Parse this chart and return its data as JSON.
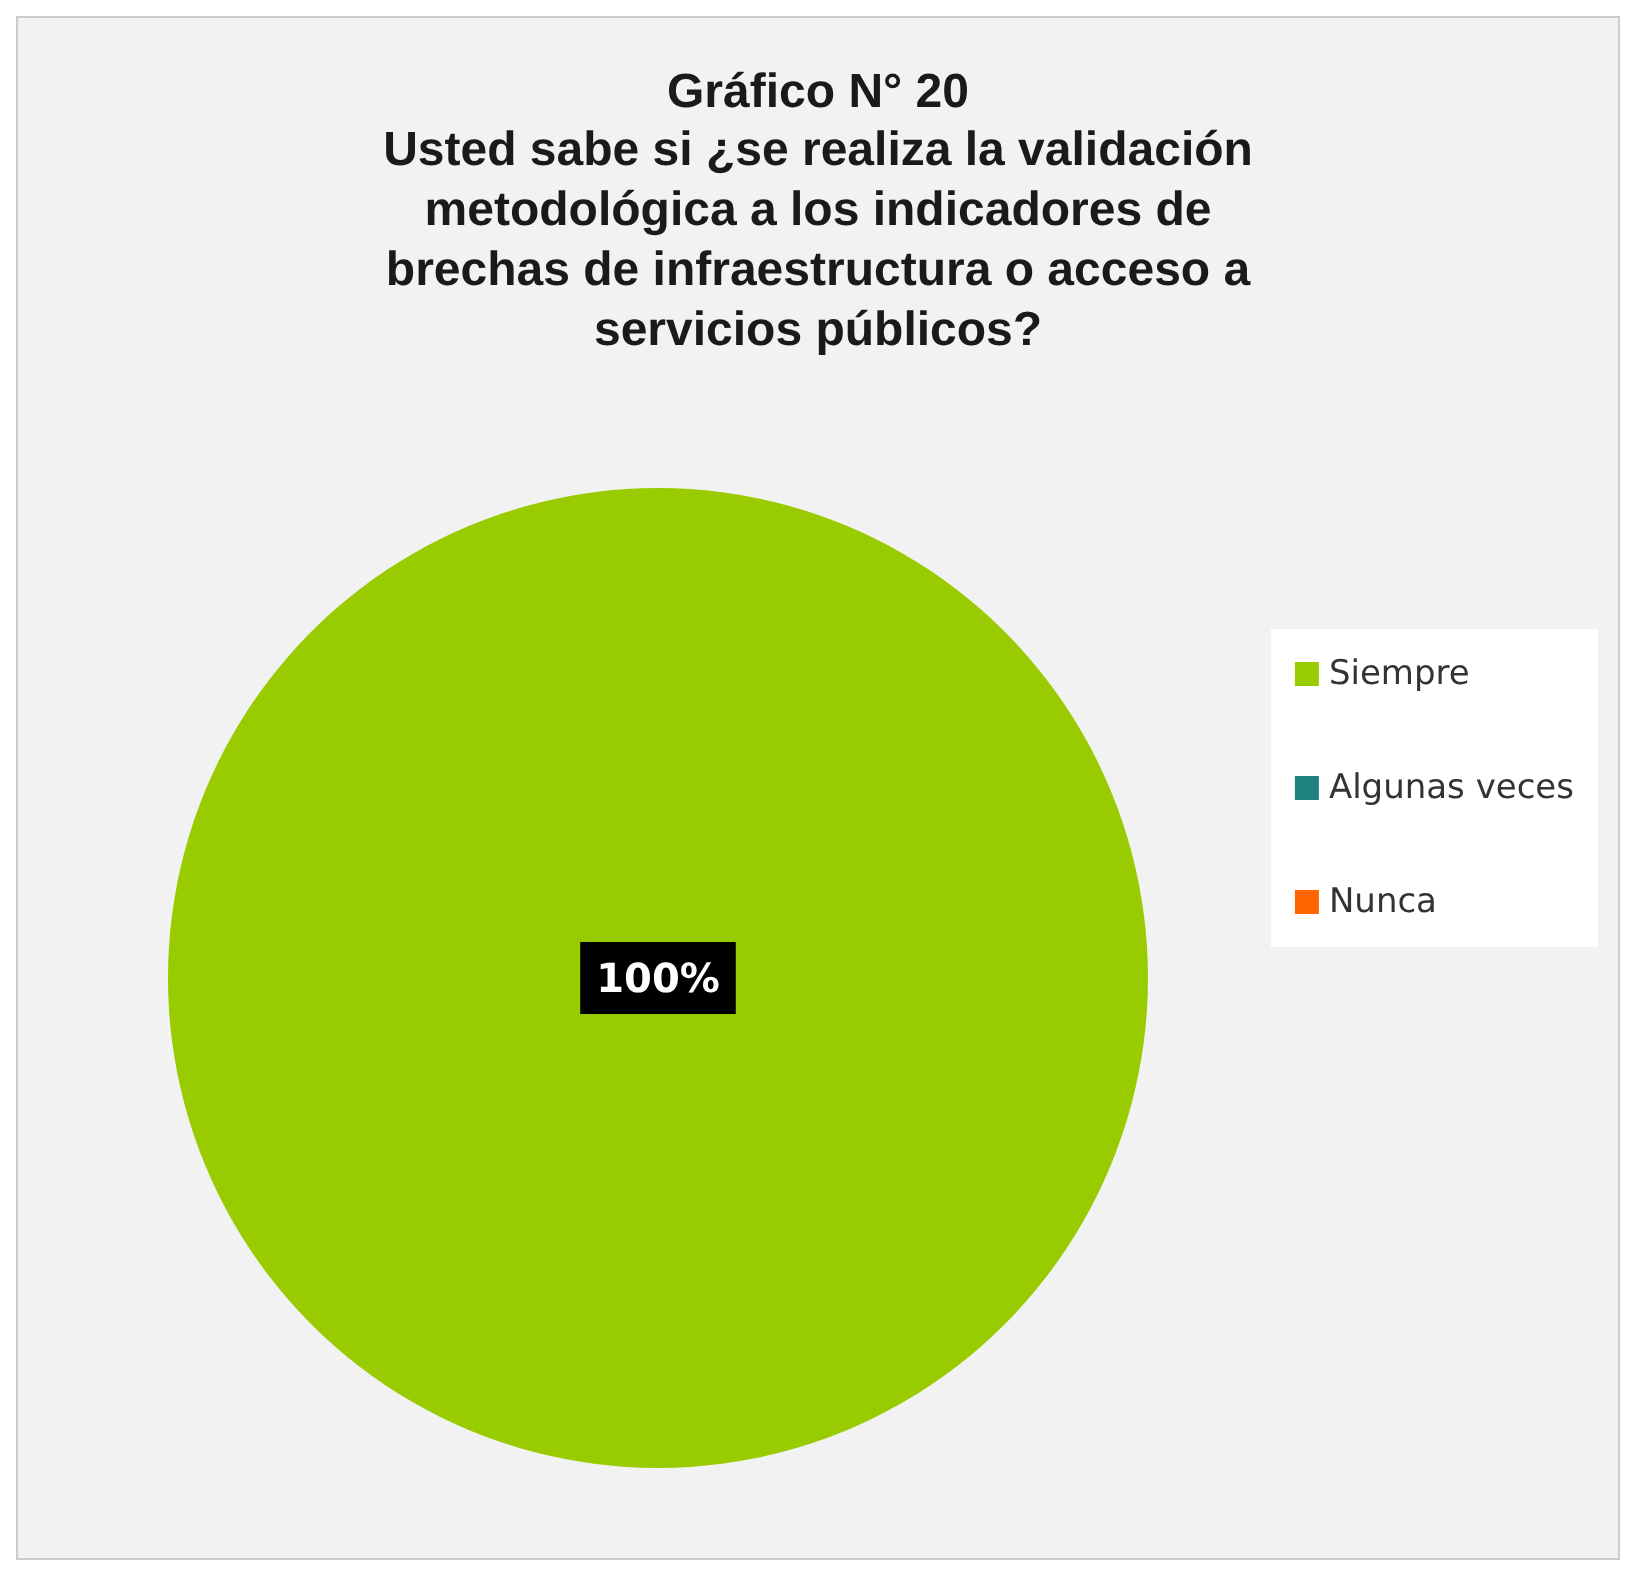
{
  "chart_data": {
    "type": "pie",
    "title": "Gráfico N° 20",
    "subtitle": "Usted sabe si ¿se realiza la validación metodológica a los indicadores de brechas de infraestructura o acceso a servicios públicos?",
    "categories": [
      "Siempre",
      "Algunas veces",
      "Nunca"
    ],
    "values": [
      100,
      0,
      0
    ],
    "colors": [
      "#99cc00",
      "#1f8080",
      "#ff6600"
    ],
    "value_labels": [
      "100%",
      null,
      null
    ],
    "legend": "right"
  }
}
